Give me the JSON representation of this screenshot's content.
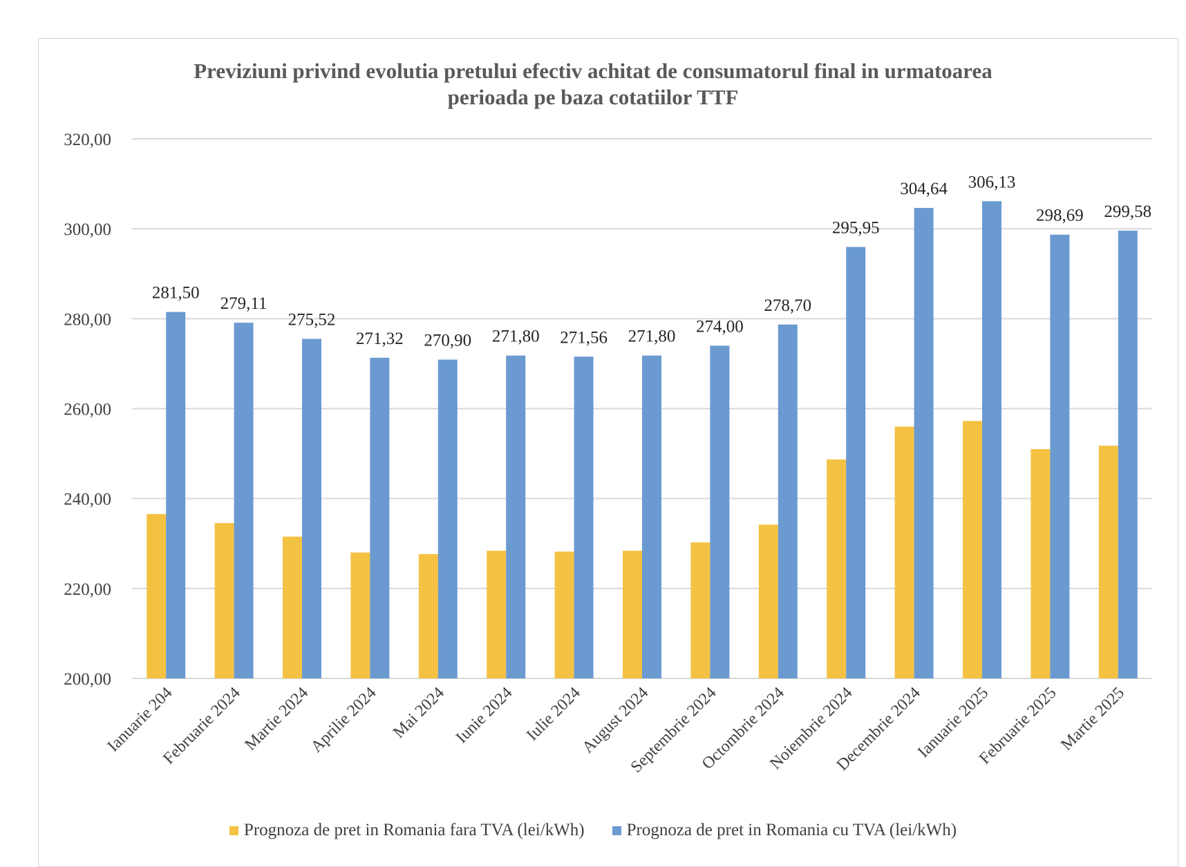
{
  "chart_data": {
    "type": "bar",
    "title": "Previziuni privind evolutia pretului efectiv achitat de consumatorul final in urmatoarea perioada pe baza cotatiilor TTF",
    "title_lines": [
      "Previziuni privind evolutia pretului efectiv achitat de consumatorul final in urmatoarea",
      "perioada pe baza cotatiilor TTF"
    ],
    "categories": [
      "Ianuarie 204",
      "Februarie 2024",
      "Martie 2024",
      "Aprilie 2024",
      "Mai 2024",
      "Iunie 2024",
      "Iulie 2024",
      "August 2024",
      "Septembrie 2024",
      "Octombrie 2024",
      "Noiembrie 2024",
      "Decembrie 2024",
      "Ianuarie 2025",
      "Februarie 2025",
      "Martie 2025"
    ],
    "series": [
      {
        "name": "Prognoza de pret in Romania fara TVA (lei/kWh)",
        "color": "#F4C243",
        "values": [
          236.55,
          234.54,
          231.53,
          228.0,
          227.65,
          228.4,
          228.2,
          228.4,
          230.25,
          234.2,
          248.7,
          256.0,
          257.25,
          251.0,
          251.75
        ]
      },
      {
        "name": "Prognoza de pret in Romania cu TVA (lei/kWh)",
        "color": "#6A9AD0",
        "values": [
          281.5,
          279.11,
          275.52,
          271.32,
          270.9,
          271.8,
          271.56,
          271.8,
          274.0,
          278.7,
          295.95,
          304.64,
          306.13,
          298.69,
          299.58
        ],
        "data_labels": [
          "281,50",
          "279,11",
          "275,52",
          "271,32",
          "270,90",
          "271,80",
          "271,56",
          "271,80",
          "274,00",
          "278,70",
          "295,95",
          "304,64",
          "306,13",
          "298,69",
          "299,58"
        ]
      }
    ],
    "ylim": [
      200,
      320
    ],
    "y_ticks": [
      200,
      220,
      240,
      260,
      280,
      300,
      320
    ],
    "y_tick_labels": [
      "200,00",
      "220,00",
      "240,00",
      "260,00",
      "280,00",
      "300,00",
      "320,00"
    ],
    "xlabel": "",
    "ylabel": "",
    "grid": true,
    "legend_position": "bottom",
    "gridline_color": "#D9D9D9",
    "text_color": "#404040"
  }
}
